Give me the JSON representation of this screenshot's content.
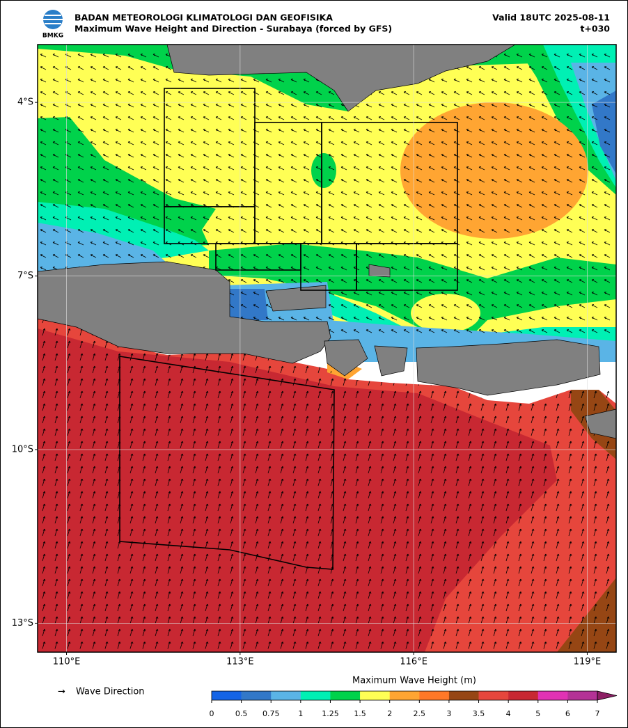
{
  "header": {
    "agency": "BADAN METEOROLOGI KLIMATOLOGI DAN GEOFISIKA",
    "title": "Maximum Wave Height and Direction - Surabaya (forced by GFS)",
    "valid": "Valid 18UTC 2025-08-11",
    "lead": "t+030",
    "logo": "BMKG"
  },
  "map": {
    "xlim": [
      109.5,
      119.5
    ],
    "ylim": [
      -13.5,
      -3
    ],
    "xticks": [
      {
        "value": 110,
        "label": "110°E"
      },
      {
        "value": 113,
        "label": "113°E"
      },
      {
        "value": 116,
        "label": "116°E"
      },
      {
        "value": 119,
        "label": "119°E"
      }
    ],
    "yticks": [
      {
        "value": -4,
        "label": "4°S"
      },
      {
        "value": -7,
        "label": "7°S"
      },
      {
        "value": -10,
        "label": "10°S"
      },
      {
        "value": -13,
        "label": "13°S"
      }
    ],
    "grid": true
  },
  "legend": {
    "arrow": "→",
    "label": "Wave Direction"
  },
  "colorbar": {
    "title": "Maximum Wave Height (m)",
    "ticks": [
      0,
      0.5,
      0.75,
      1,
      1.25,
      1.5,
      2,
      2.5,
      3,
      3.5,
      4,
      5,
      6,
      7
    ],
    "colors": [
      "#1464e6",
      "#3278c8",
      "#5ab4e6",
      "#00f0b4",
      "#00d24b",
      "#ffff55",
      "#ffa532",
      "#ff7828",
      "#964614",
      "#e6463c",
      "#c82832",
      "#e132b4",
      "#b43296"
    ],
    "extend_color": "#8c1e64"
  }
}
